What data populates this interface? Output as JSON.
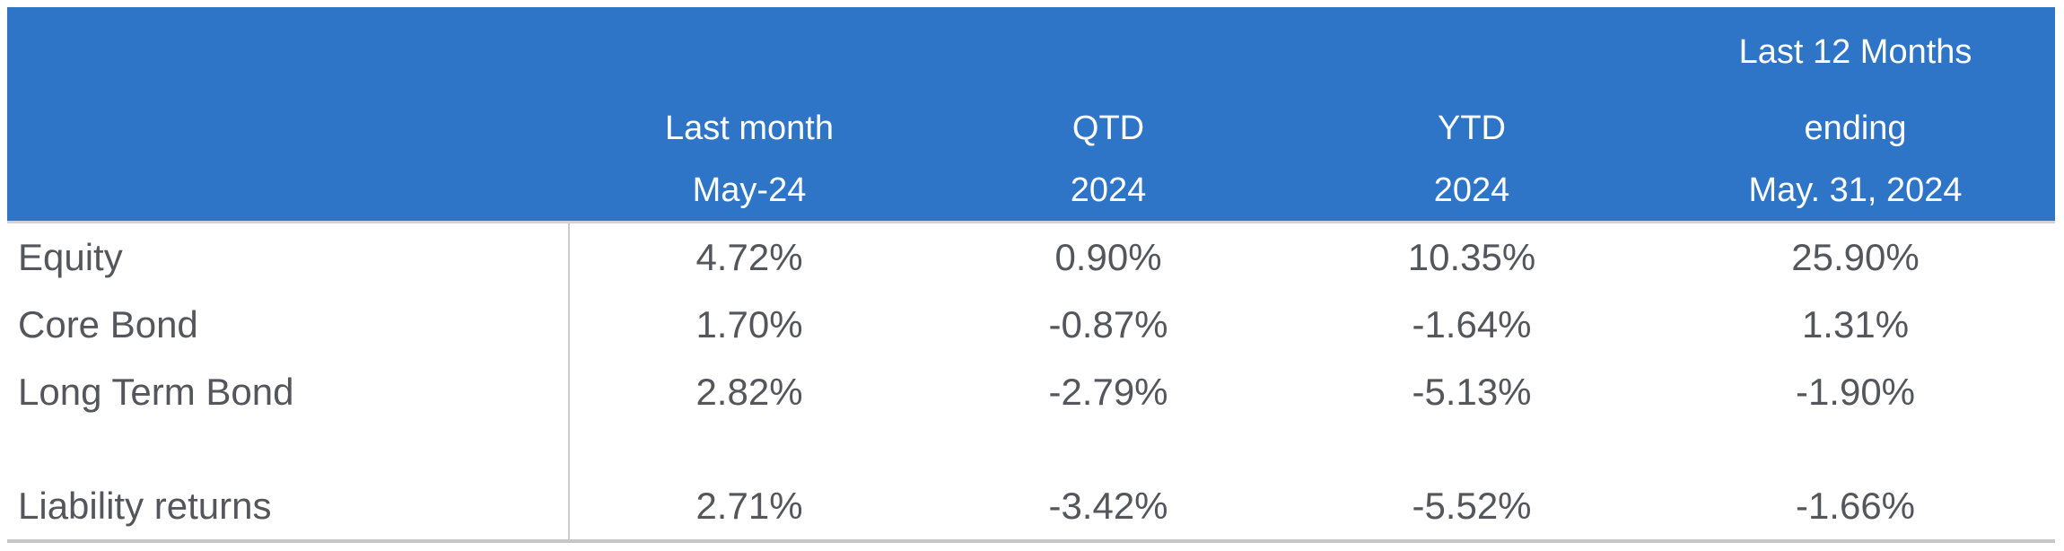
{
  "colors": {
    "header_bg": "#2e74c7",
    "header_text": "#ffffff",
    "body_text": "#54565c",
    "column_divider": "#cccccc",
    "header_underline": "#d2d2d2",
    "bottom_border": "#c6c6c6"
  },
  "header": {
    "row_label_column": "",
    "columns": [
      {
        "line1": "",
        "line2": "Last month",
        "line3": "May-24"
      },
      {
        "line1": "",
        "line2": "QTD",
        "line3": "2024"
      },
      {
        "line1": "",
        "line2": "YTD",
        "line3": "2024"
      },
      {
        "line1": "Last 12 Months",
        "line2": "ending",
        "line3": "May. 31, 2024"
      }
    ]
  },
  "rows": [
    {
      "label": "Equity",
      "values": [
        "4.72%",
        "0.90%",
        "10.35%",
        "25.90%"
      ]
    },
    {
      "label": "Core Bond",
      "values": [
        "1.70%",
        "-0.87%",
        "-1.64%",
        "1.31%"
      ]
    },
    {
      "label": "Long Term Bond",
      "values": [
        "2.82%",
        "-2.79%",
        "-5.13%",
        "-1.90%"
      ]
    },
    {
      "label": "Liability returns",
      "values": [
        "2.71%",
        "-3.42%",
        "-5.52%",
        "-1.66%"
      ]
    }
  ],
  "chart_data": {
    "type": "table",
    "title": "",
    "unit": "%",
    "columns": [
      "",
      "Last month May-24",
      "QTD 2024",
      "YTD 2024",
      "Last 12 Months ending May. 31, 2024"
    ],
    "row_labels": [
      "Equity",
      "Core Bond",
      "Long Term Bond",
      "Liability returns"
    ],
    "series": [
      {
        "name": "Last month May-24",
        "values": [
          4.72,
          1.7,
          2.82,
          2.71
        ]
      },
      {
        "name": "QTD 2024",
        "values": [
          0.9,
          -0.87,
          -2.79,
          -3.42
        ]
      },
      {
        "name": "YTD 2024",
        "values": [
          10.35,
          -1.64,
          -5.13,
          -5.52
        ]
      },
      {
        "name": "Last 12 Months ending May. 31, 2024",
        "values": [
          25.9,
          1.31,
          -1.9,
          -1.66
        ]
      }
    ],
    "layout_hints": {
      "header_background": "#2e74c7",
      "empty_spacer_row_before": "Liability returns",
      "first_column_divider": true
    }
  }
}
